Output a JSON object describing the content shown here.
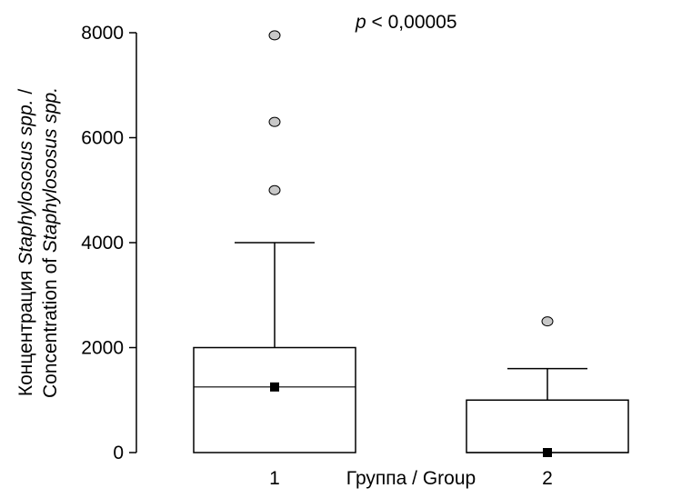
{
  "chart_data": {
    "type": "box",
    "annotation": {
      "prefix": "p",
      "suffix": " < 0,00005"
    },
    "xlabel": "Группа / Group",
    "ylabel": {
      "line1": [
        {
          "text": "Концентрация ",
          "italic": false
        },
        {
          "text": "Staphylososus spp.",
          "italic": true
        },
        {
          "text": " /",
          "italic": false
        }
      ],
      "line2": [
        {
          "text": "Concentration of ",
          "italic": false
        },
        {
          "text": "Staphylososus spp.",
          "italic": true
        }
      ]
    },
    "ylim": [
      0,
      8000
    ],
    "yticks": [
      0,
      2000,
      4000,
      6000,
      8000
    ],
    "yticklabels": [
      "0",
      "2000",
      "4000",
      "6000",
      "8000"
    ],
    "grid": false,
    "groups": [
      {
        "label": "1",
        "q1": 0,
        "median": 1250,
        "q3": 2000,
        "whisker_low": 0,
        "whisker_high": 4000,
        "mean": 1250,
        "outliers": [
          5000,
          6300,
          7950
        ]
      },
      {
        "label": "2",
        "q1": 0,
        "median": 0,
        "q3": 1000,
        "whisker_low": 0,
        "whisker_high": 1600,
        "mean": 0,
        "outliers": [
          2500
        ]
      }
    ],
    "colors": {
      "outlier_fill": "#c8c8c8",
      "mean_marker": "#000000",
      "box_fill": "#ffffff",
      "stroke": "#000000"
    }
  }
}
